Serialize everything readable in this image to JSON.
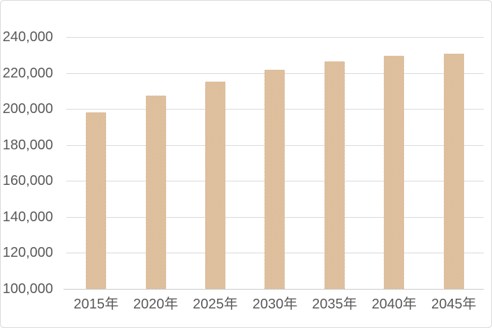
{
  "chart": {
    "title": "",
    "colors": {
      "background": "#ffffff",
      "border": "#d9d9d9",
      "gridline": "#d9d9d9",
      "axis_line": "#c9c9c9",
      "label_text": "#595959",
      "bar_pattern_foreground": "#c1874a",
      "bar_pattern_background": "#fbf7f0"
    }
  },
  "chart_data": {
    "type": "bar",
    "categories": [
      "2015年",
      "2020年",
      "2025年",
      "2030年",
      "2035年",
      "2040年",
      "2045年"
    ],
    "values": [
      198000,
      207300,
      215000,
      221600,
      226400,
      229400,
      230800
    ],
    "title": "",
    "subtitle": "",
    "xlabel": "",
    "ylabel": "",
    "ylim": [
      100000,
      240000
    ],
    "ytick_interval": 20000,
    "ytick_labels": [
      "240,000",
      "220,000",
      "200,000",
      "180,000",
      "160,000",
      "140,000",
      "120,000",
      "100,000"
    ],
    "grid": true,
    "legend": false,
    "bar_fill_style": "fine checkerboard pattern, tan on white"
  }
}
